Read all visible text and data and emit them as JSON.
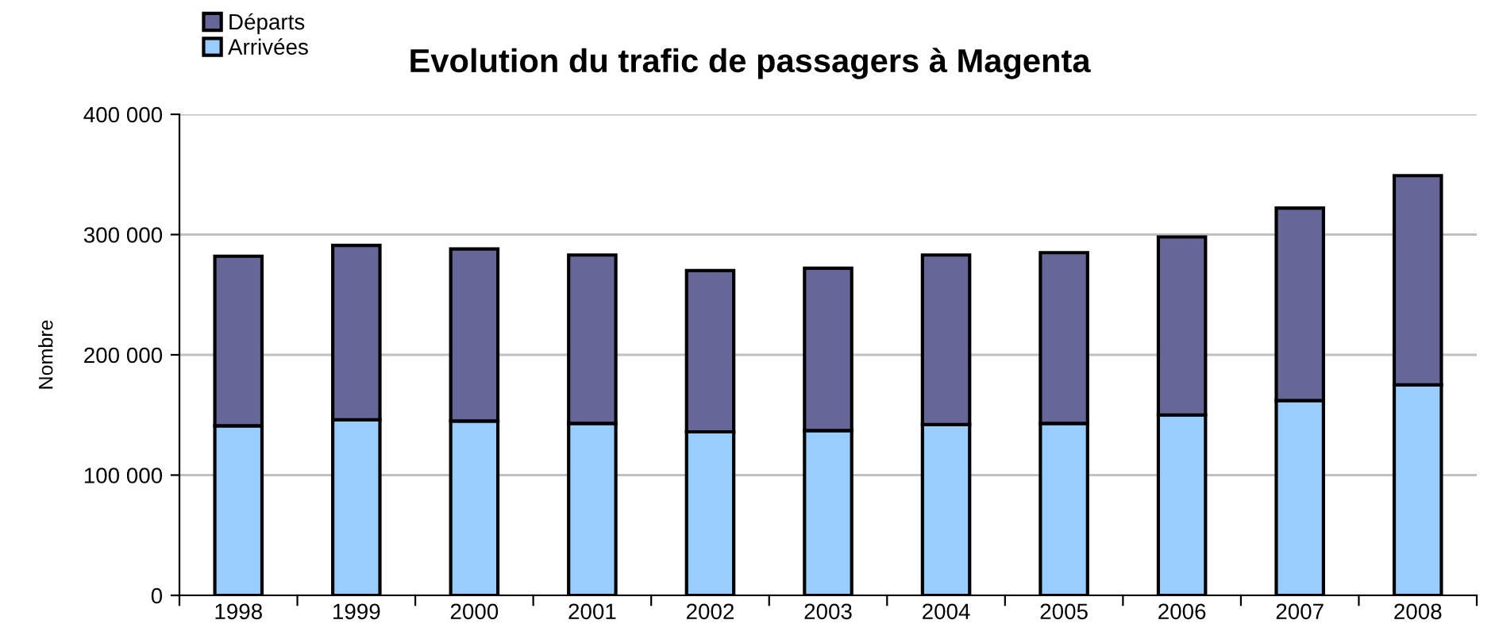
{
  "chart_data": {
    "type": "bar",
    "title": "Evolution du trafic de passagers à Magenta",
    "ylabel": "Nombre",
    "categories": [
      "1998",
      "1999",
      "2000",
      "2001",
      "2002",
      "2003",
      "2004",
      "2005",
      "2006",
      "2007",
      "2008"
    ],
    "stacked": true,
    "series": [
      {
        "name": "Arrivées",
        "color": "#99ccff",
        "values": [
          141000,
          146000,
          145000,
          143000,
          136000,
          137000,
          142000,
          143000,
          150000,
          162000,
          175000
        ]
      },
      {
        "name": "Départs",
        "color": "#666699",
        "values": [
          141000,
          145000,
          143000,
          140000,
          134000,
          135000,
          141000,
          142000,
          148000,
          160000,
          174000
        ]
      }
    ],
    "ylim": [
      0,
      400000
    ],
    "yticks": [
      0,
      {
        "value": 100000,
        "label": "100 000"
      },
      {
        "value": 200000,
        "label": "200 000"
      },
      {
        "value": 300000,
        "label": "300 000"
      },
      {
        "value": 400000,
        "label": "400 000"
      }
    ],
    "grid": "y",
    "legend": "top left"
  }
}
